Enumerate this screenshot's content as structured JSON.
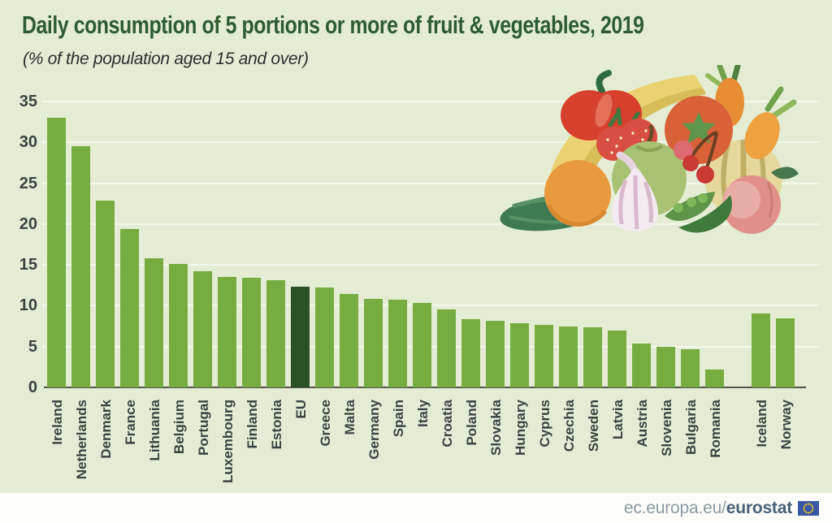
{
  "header": {
    "title": "Daily consumption of 5 portions or more of fruit & vegetables, 2019",
    "subtitle": "(% of the population aged 15 and over)"
  },
  "footer": {
    "link_prefix": "ec.europa.eu/",
    "link_bold": "eurostat"
  },
  "icons": {
    "illustration": "fruit-vegetables-illustration",
    "flag": "eu-flag-icon"
  },
  "colors": {
    "background": "#e4edd4",
    "bar": "#77ac41",
    "eu_bar": "#2b5226",
    "title_text": "#2d5c31",
    "axis_text": "#3c4242",
    "axis_line": "#52534a",
    "gridline": "rgba(255,255,255,0.55)",
    "footer_band": "#fcfdf9",
    "footer_text": "#8c99a4",
    "footer_bold_text": "#46617b",
    "flag_blue": "#3a57a5",
    "flag_stars": "#f7d117"
  },
  "chart_data": {
    "type": "bar",
    "title": "Daily consumption of 5 portions or more of fruit & vegetables, 2019",
    "subtitle": "(% of the population aged 15 and over)",
    "xlabel": "",
    "ylabel": "% of the population aged 15 and over",
    "ylim": [
      0,
      35
    ],
    "yticks": [
      0,
      5,
      10,
      15,
      20,
      25,
      30,
      35
    ],
    "grid": "horizontal",
    "legend": false,
    "bar_color": "#77ac41",
    "highlight": {
      "category": "EU",
      "color": "#2b5226"
    },
    "gap_before": [
      "Iceland"
    ],
    "categories": [
      "Ireland",
      "Netherlands",
      "Denmark",
      "France",
      "Lithuania",
      "Belgium",
      "Portugal",
      "Luxembourg",
      "Finland",
      "Estonia",
      "EU",
      "Greece",
      "Malta",
      "Germany",
      "Spain",
      "Italy",
      "Croatia",
      "Poland",
      "Slovakia",
      "Hungary",
      "Cyprus",
      "Czechia",
      "Sweden",
      "Latvia",
      "Austria",
      "Slovenia",
      "Bulgaria",
      "Romania",
      "Iceland",
      "Norway"
    ],
    "values": [
      33.0,
      29.5,
      22.9,
      19.4,
      15.8,
      15.1,
      14.2,
      13.5,
      13.4,
      13.1,
      12.3,
      12.2,
      11.4,
      10.8,
      10.7,
      10.3,
      9.5,
      8.4,
      8.2,
      7.9,
      7.7,
      7.5,
      7.4,
      7.0,
      5.4,
      5.0,
      4.7,
      2.2,
      9.0,
      8.5
    ]
  }
}
